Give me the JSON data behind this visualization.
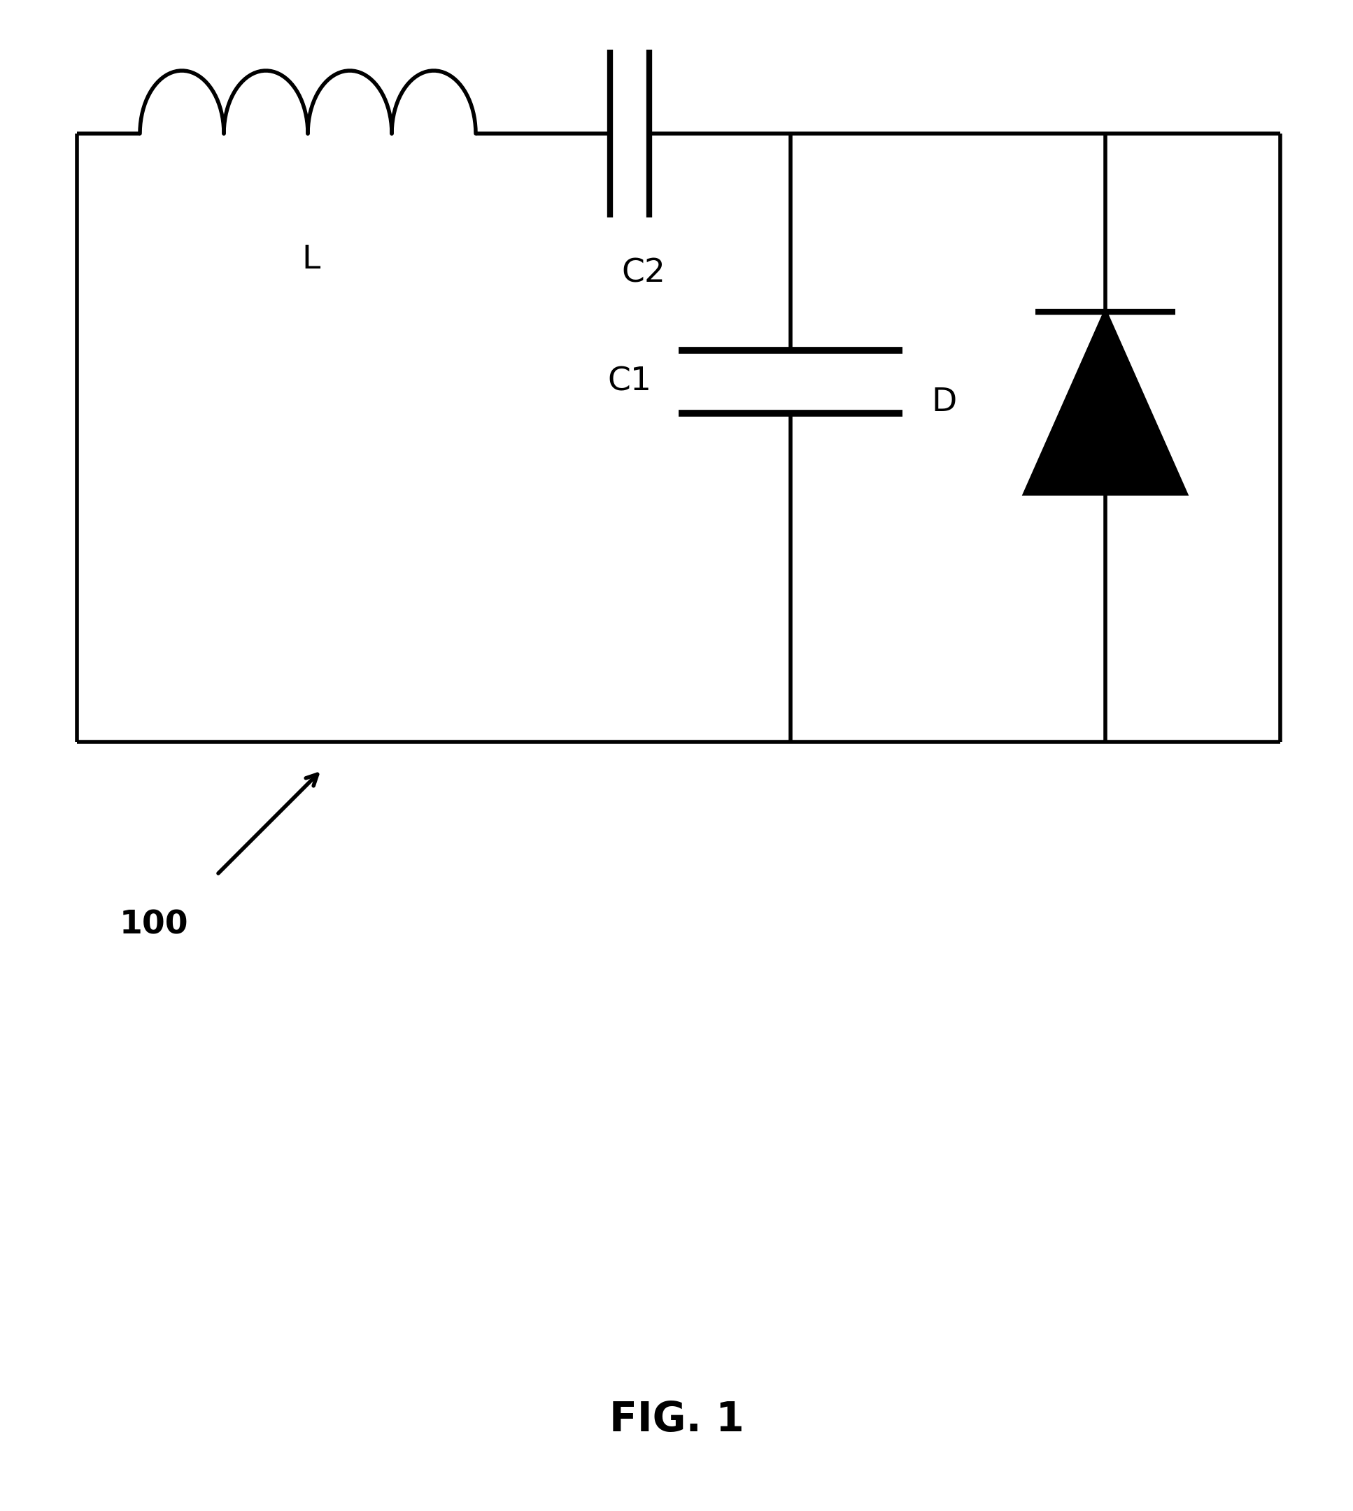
{
  "bg_color": "#ffffff",
  "line_color": "#000000",
  "line_width": 4.0,
  "fig_width": 19.34,
  "fig_height": 21.61,
  "inductor_label": "L",
  "c2_label": "C2",
  "c1_label": "C1",
  "d_label": "D",
  "label_100": "100",
  "fig_label": "FIG. 1",
  "font_size_labels": 34,
  "font_size_fig": 42
}
